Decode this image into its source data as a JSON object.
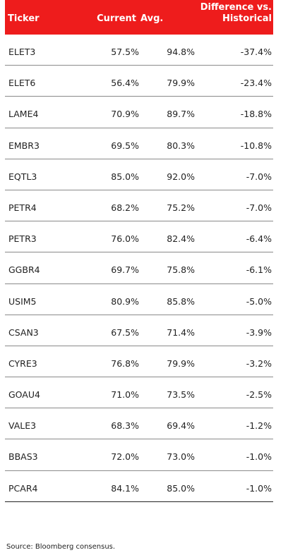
{
  "headers": {
    "ticker": "Ticker",
    "current": "Current",
    "avg": "Avg.",
    "diff_line1": "Difference vs.",
    "diff_line2": "Historical"
  },
  "rows": [
    {
      "ticker": "ELET3",
      "current": "57.5%",
      "avg": "94.8%",
      "diff": "-37.4%"
    },
    {
      "ticker": "ELET6",
      "current": "56.4%",
      "avg": "79.9%",
      "diff": "-23.4%"
    },
    {
      "ticker": "LAME4",
      "current": "70.9%",
      "avg": "89.7%",
      "diff": "-18.8%"
    },
    {
      "ticker": "EMBR3",
      "current": "69.5%",
      "avg": "80.3%",
      "diff": "-10.8%"
    },
    {
      "ticker": "EQTL3",
      "current": "85.0%",
      "avg": "92.0%",
      "diff": "-7.0%"
    },
    {
      "ticker": "PETR4",
      "current": "68.2%",
      "avg": "75.2%",
      "diff": "-7.0%"
    },
    {
      "ticker": "PETR3",
      "current": "76.0%",
      "avg": "82.4%",
      "diff": "-6.4%"
    },
    {
      "ticker": "GGBR4",
      "current": "69.7%",
      "avg": "75.8%",
      "diff": "-6.1%"
    },
    {
      "ticker": "USIM5",
      "current": "80.9%",
      "avg": "85.8%",
      "diff": "-5.0%"
    },
    {
      "ticker": "CSAN3",
      "current": "67.5%",
      "avg": "71.4%",
      "diff": "-3.9%"
    },
    {
      "ticker": "CYRE3",
      "current": "76.8%",
      "avg": "79.9%",
      "diff": "-3.2%"
    },
    {
      "ticker": "GOAU4",
      "current": "71.0%",
      "avg": "73.5%",
      "diff": "-2.5%"
    },
    {
      "ticker": "VALE3",
      "current": "68.3%",
      "avg": "69.4%",
      "diff": "-1.2%"
    },
    {
      "ticker": "BBAS3",
      "current": "72.0%",
      "avg": "73.0%",
      "diff": "-1.0%"
    },
    {
      "ticker": "PCAR4",
      "current": "84.1%",
      "avg": "85.0%",
      "diff": "-1.0%"
    }
  ],
  "source": "Source: Bloomberg consensus.",
  "colors": {
    "header_bg": "#ee1c1c",
    "header_text": "#ffffff"
  }
}
